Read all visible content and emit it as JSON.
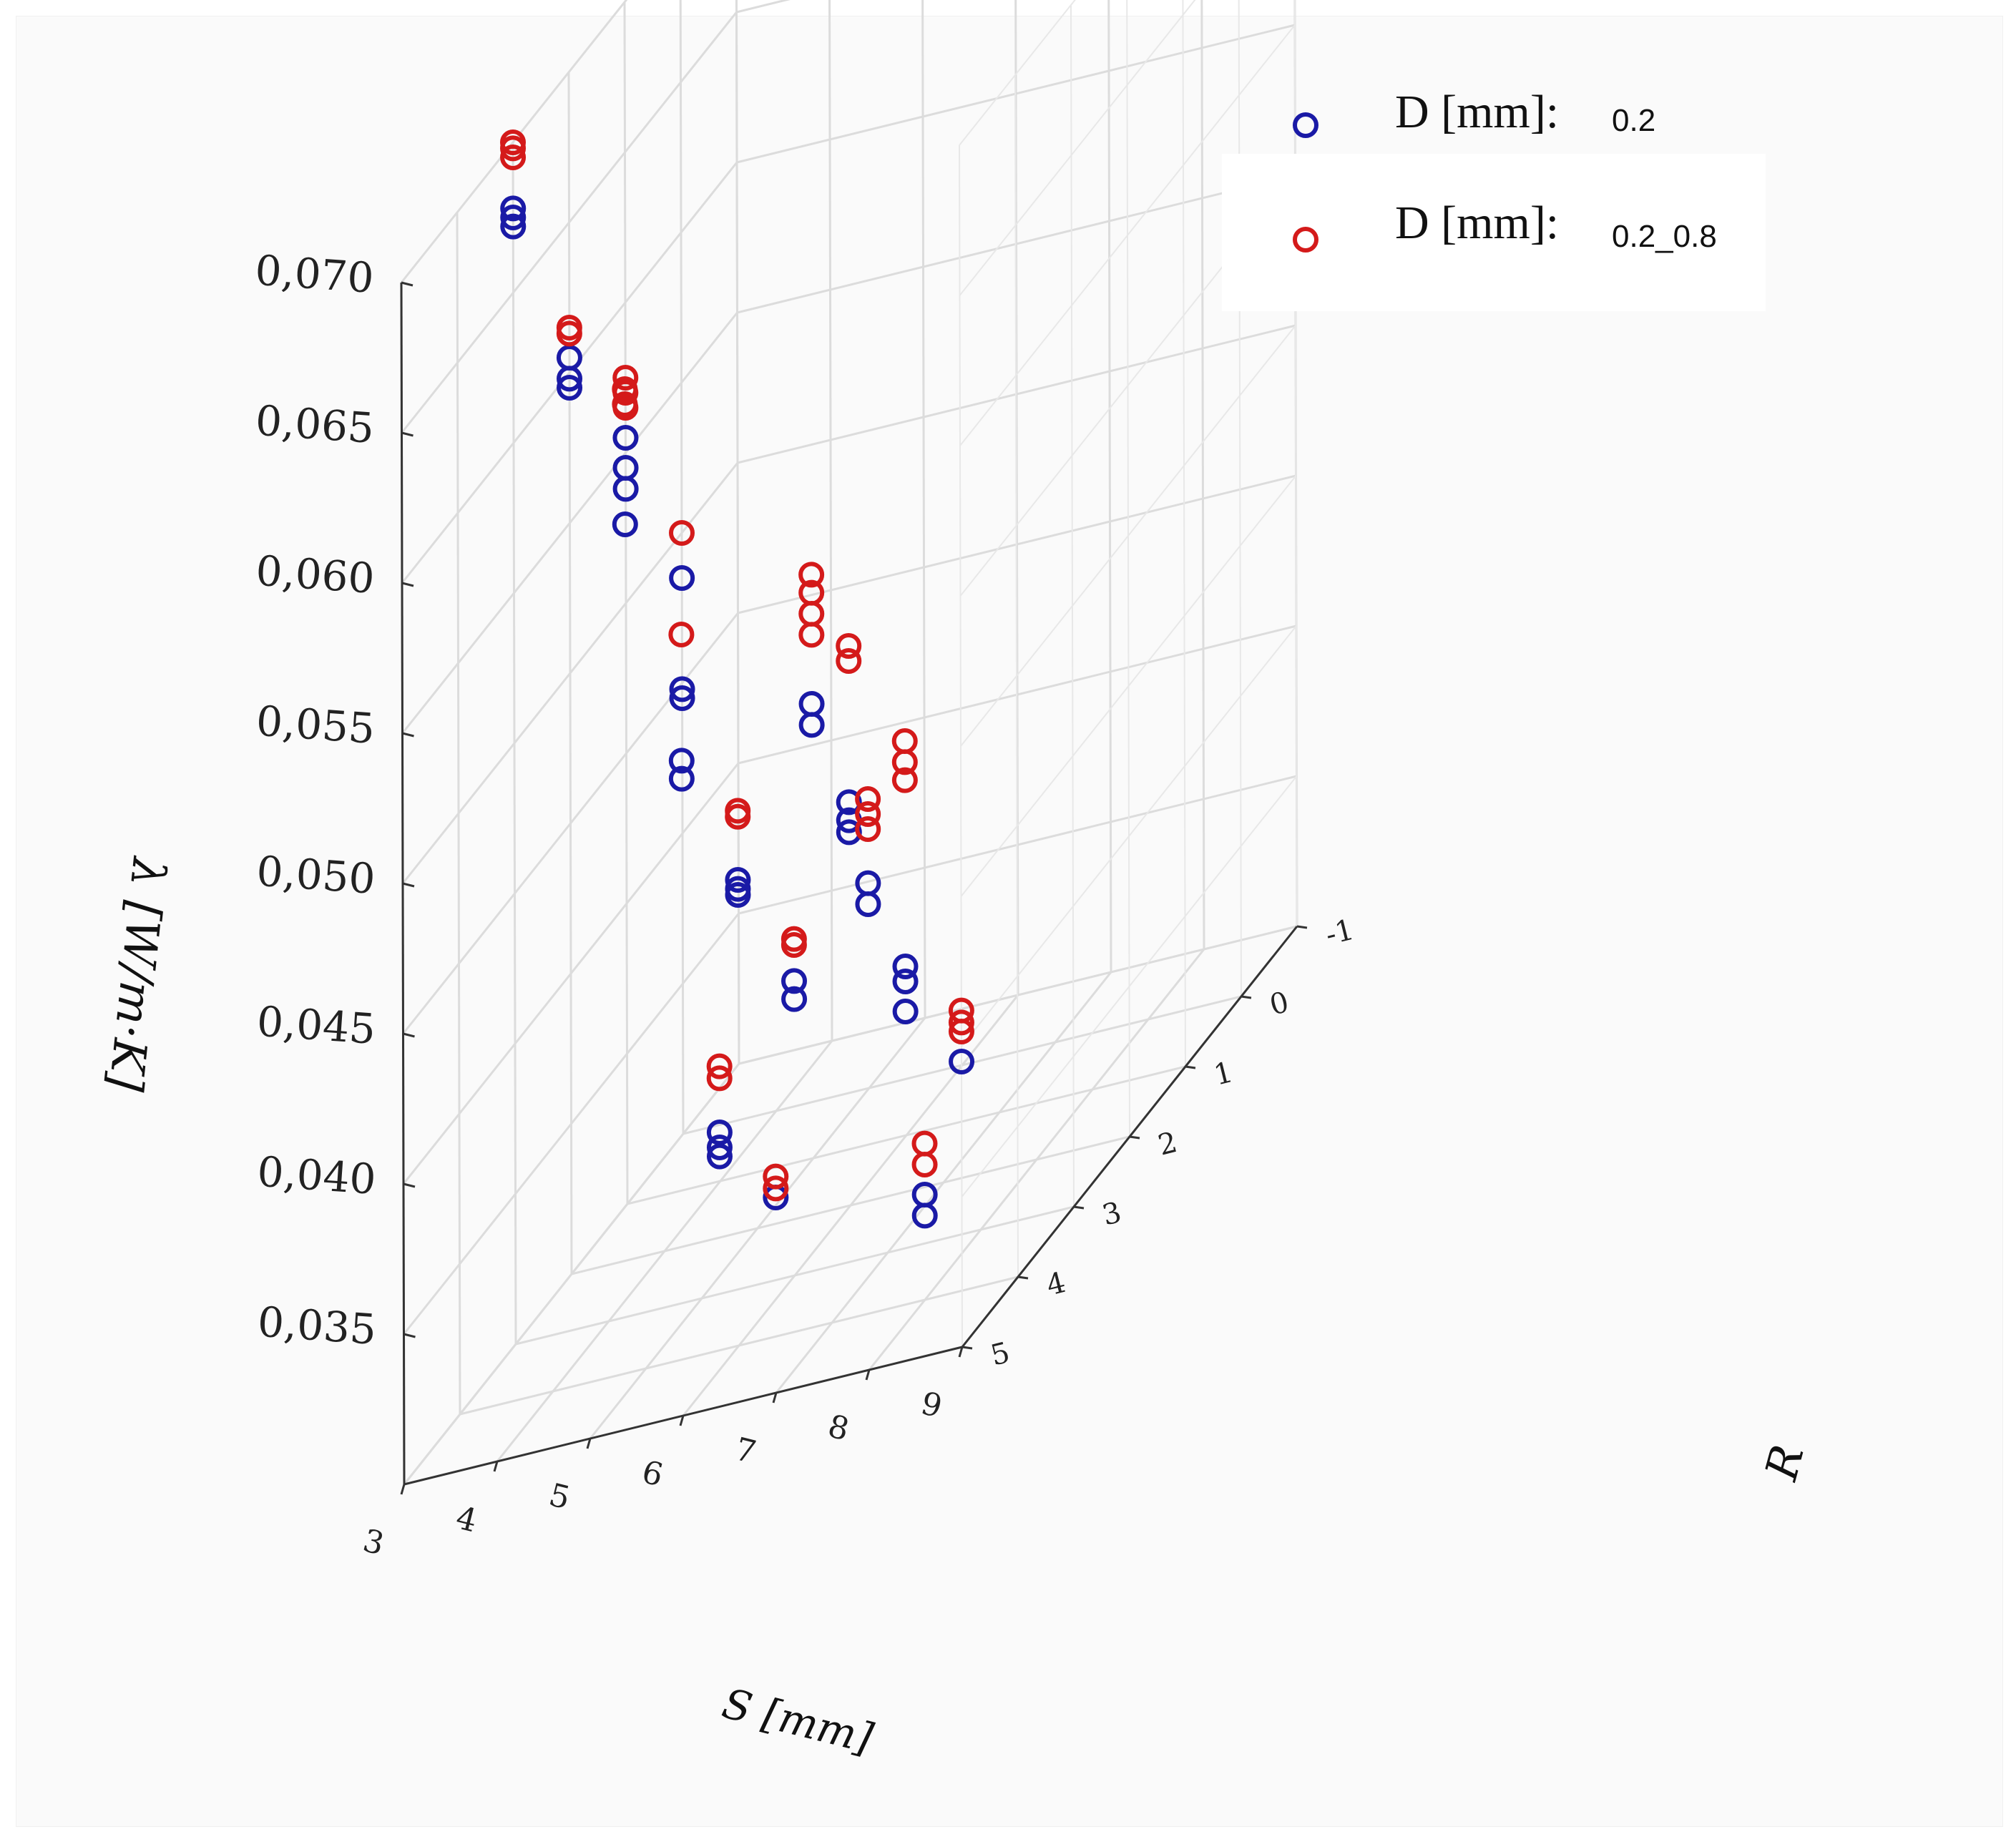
{
  "chart_data": {
    "type": "scatter",
    "projection": "3d",
    "title": "",
    "xlabel": "S [mm]",
    "ylabel": "R",
    "zlabel": "λ [W/m·K]",
    "xlim": [
      3,
      9
    ],
    "ylim": [
      -1,
      5
    ],
    "zlim": [
      0.03,
      0.07
    ],
    "x_ticks": [
      "3",
      "4",
      "5",
      "6",
      "7",
      "8",
      "9"
    ],
    "y_ticks": [
      "-1",
      "0",
      "1",
      "2",
      "3",
      "4",
      "5"
    ],
    "z_ticks": [
      "0,035",
      "0,040",
      "0,045",
      "0,050",
      "0,055",
      "0,060",
      "0,065",
      "0,070"
    ],
    "grid": true,
    "legend_position": "top-right",
    "series": [
      {
        "name_main": "D [mm]:",
        "name_sub": "0.2",
        "color": "#1a1aa6",
        "points": [
          {
            "s": 9,
            "r": 0,
            "l": [
              0.0485,
              0.0445,
              0.0448
            ]
          },
          {
            "s": 9,
            "r": 1,
            "l": [
              0.0555,
              0.0545,
              0.0538
            ]
          },
          {
            "s": 9,
            "r": 2,
            "l": [
              0.0605,
              0.0598,
              0.0595
            ]
          },
          {
            "s": 9,
            "r": 3,
            "l": [
              0.0678,
              0.0675,
              0.0672
            ]
          },
          {
            "s": 6,
            "r": 3,
            "l": [
              0.0398,
              0.0392
            ]
          },
          {
            "s": 6,
            "r": 4,
            "l": [
              0.0455,
              0.0452,
              0.045
            ]
          },
          {
            "s": 6,
            "r": 5,
            "l": [
              0.0518,
              0.0512
            ]
          },
          {
            "s": 5,
            "r": 5,
            "l": [
              0.0365
            ]
          },
          {
            "s": 6,
            "r": 6,
            "l": [
              0.062
            ]
          },
          {
            "s": 5,
            "r": 6,
            "l": [
              0.041,
              0.0405,
              0.0402
            ]
          },
          {
            "s": 4,
            "r": 5,
            "l": [
              0.0462,
              0.0455
            ]
          },
          {
            "s": 4,
            "r": 6,
            "l": [
              0.0545,
              0.0538
            ]
          },
          {
            "s": 3,
            "r": 5,
            "l": [
              0.0395
            ]
          },
          {
            "s": 3,
            "r": 6,
            "l": [
              0.045,
              0.0445,
              0.0435
            ]
          },
          {
            "s": 3,
            "r": 7,
            "l": [
              0.0528,
              0.0522,
              0.0518
            ]
          },
          {
            "s": 4,
            "r": 4,
            "l": [
              0.0335,
              0.0328
            ]
          }
        ]
      },
      {
        "name_main": "D [mm]:",
        "name_sub": "0.2_0.8",
        "color": "#d41a1a",
        "points": [
          {
            "s": 9,
            "r": 0,
            "l": [
              0.05
            ]
          },
          {
            "s": 9,
            "r": 1,
            "l": [
              0.0575,
              0.057,
              0.0565
            ]
          },
          {
            "s": 9,
            "r": 2,
            "l": [
              0.0615,
              0.0613
            ]
          },
          {
            "s": 9,
            "r": 3,
            "l": [
              0.07,
              0.0698,
              0.0695
            ]
          },
          {
            "s": 6,
            "r": 3,
            "l": [
              0.0412,
              0.041
            ]
          },
          {
            "s": 6,
            "r": 4,
            "l": [
              0.0478,
              0.0476
            ]
          },
          {
            "s": 6,
            "r": 5,
            "l": [
              0.056
            ]
          },
          {
            "s": 5,
            "r": 5,
            "l": [
              0.0372,
              0.0368
            ]
          },
          {
            "s": 6,
            "r": 6,
            "l": [
              0.0665,
              0.066
            ]
          },
          {
            "s": 5,
            "r": 6,
            "l": [
              0.0432,
              0.0428
            ]
          },
          {
            "s": 4,
            "r": 5,
            "l": [
              0.049,
              0.0485,
              0.048
            ]
          },
          {
            "s": 4,
            "r": 6,
            "l": [
              0.0588,
              0.0582,
              0.0575,
              0.0568
            ]
          },
          {
            "s": 3,
            "r": 5,
            "l": [
              0.0412,
              0.0408,
              0.0405
            ]
          },
          {
            "s": 3,
            "r": 6,
            "l": [
              0.0525,
              0.0518,
              0.0512
            ]
          },
          {
            "s": 3,
            "r": 7,
            "l": [
              0.058,
              0.0575
            ]
          },
          {
            "s": 4,
            "r": 4,
            "l": [
              0.0352,
              0.0345
            ]
          }
        ]
      }
    ]
  }
}
